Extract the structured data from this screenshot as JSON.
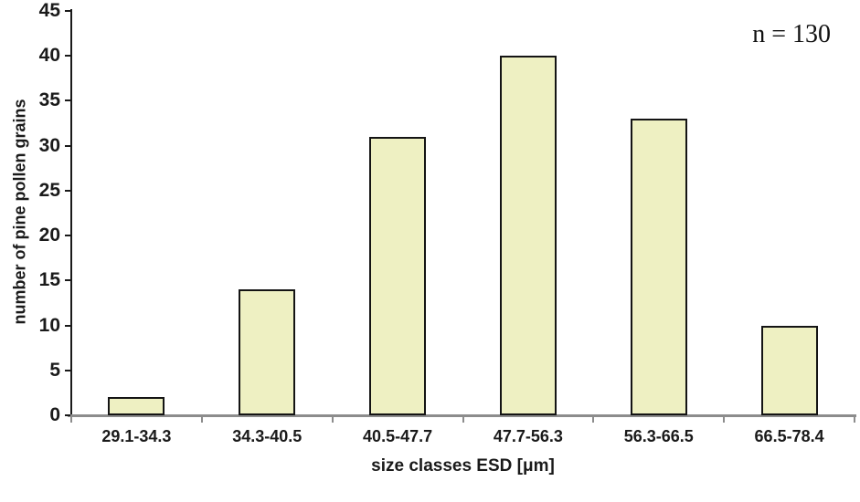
{
  "chart_data": {
    "type": "bar",
    "title": "",
    "categories": [
      "29.1-34.3",
      "34.3-40.5",
      "40.5-47.7",
      "47.7-56.3",
      "56.3-66.5",
      "66.5-78.4"
    ],
    "values": [
      2,
      14,
      31,
      40,
      33,
      10
    ],
    "xlabel": "size classes ESD [μm]",
    "ylabel": "number of pine pollen grains",
    "ylim": [
      0,
      45
    ],
    "yticks": [
      0,
      5,
      10,
      15,
      20,
      25,
      30,
      35,
      40,
      45
    ],
    "annotation": "n = 130",
    "legend_position": "none",
    "grid": false,
    "bar_fill_color": "#eef0c2",
    "bar_border_color": "#141414",
    "x_axis_color": "#8c8c8c",
    "y_axis_color": "#1a1a1a"
  }
}
